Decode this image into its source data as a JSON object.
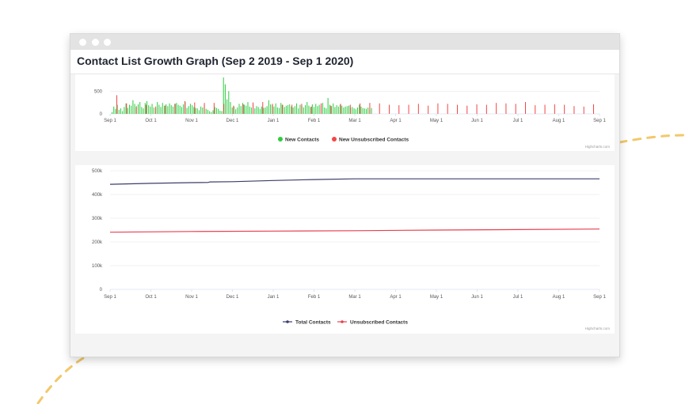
{
  "window": {
    "title": "Contact List Growth Graph (Sep 2 2019 - Sep 1 2020)"
  },
  "colors": {
    "new_contacts": "#2ecc40",
    "new_unsubscribed": "#f44646",
    "total_contacts": "#3b3d6b",
    "unsubscribed_contacts": "#e8404f",
    "accent_dashes": "#f2c86a"
  },
  "chart_data": [
    {
      "type": "bar",
      "x_tick_labels": [
        "Sep 1",
        "Oct 1",
        "Nov 1",
        "Dec 1",
        "Jan 1",
        "Feb 1",
        "Mar 1",
        "Apr 1",
        "May 1",
        "Jun 1",
        "Jul 1",
        "Aug 1",
        "Sep 1"
      ],
      "y_tick_labels": [
        "0",
        "500"
      ],
      "ylim": [
        0,
        800
      ],
      "series": [
        {
          "name": "New Contacts",
          "color": "#2ecc40",
          "values": [
            40,
            160,
            110,
            200,
            90,
            120,
            60,
            150,
            230,
            130,
            200,
            180,
            300,
            220,
            170,
            210,
            260,
            150,
            120,
            240,
            280,
            190,
            160,
            220,
            140,
            120,
            260,
            200,
            150,
            240,
            180,
            210,
            170,
            230,
            190,
            160,
            220,
            240,
            200,
            180,
            150,
            210,
            260,
            130,
            170,
            220,
            190,
            150,
            130,
            120,
            80,
            160,
            140,
            200,
            110,
            90,
            60,
            40,
            80,
            150,
            130,
            110,
            70,
            60,
            800,
            650,
            320,
            500,
            260,
            140,
            160,
            100,
            140,
            220,
            170,
            240,
            200,
            180,
            260,
            160,
            140,
            200,
            120,
            170,
            150,
            110,
            160,
            130,
            140,
            170,
            300,
            210,
            190,
            160,
            230,
            140,
            130,
            240,
            200,
            150,
            180,
            190,
            210,
            160,
            140,
            170,
            230,
            120,
            200,
            170,
            140,
            190,
            260,
            180,
            150,
            210,
            150,
            220,
            170,
            200,
            180,
            240,
            140,
            120,
            350,
            200,
            170,
            230,
            150,
            190,
            160,
            200,
            180,
            140,
            160,
            170,
            180,
            140,
            150,
            120,
            100,
            140,
            200,
            160,
            130,
            120,
            110,
            140,
            90,
            130
          ]
        },
        {
          "name": "New Unsubscribed Contacts",
          "color": "#f44646",
          "values": [
            410,
            230,
            150,
            200,
            160,
            180,
            220,
            280,
            250,
            240,
            240,
            220,
            180,
            210,
            250,
            260,
            220,
            200,
            200,
            220,
            160,
            230,
            180,
            220,
            200,
            230,
            240,
            230,
            200,
            190,
            200,
            220,
            180,
            230,
            220,
            200,
            180,
            210,
            200,
            240,
            230,
            220,
            260,
            190,
            200,
            210,
            200,
            170,
            160,
            210
          ]
        }
      ]
    },
    {
      "type": "line",
      "x_tick_labels": [
        "Sep 1",
        "Oct 1",
        "Nov 1",
        "Dec 1",
        "Jan 1",
        "Feb 1",
        "Mar 1",
        "Apr 1",
        "May 1",
        "Jun 1",
        "Jul 1",
        "Aug 1",
        "Sep 1"
      ],
      "y_tick_labels": [
        "0",
        "100k",
        "200k",
        "300k",
        "400k",
        "500k"
      ],
      "ylim": [
        0,
        500000
      ],
      "series": [
        {
          "name": "Total Contacts",
          "color": "#3b3d6b",
          "points": [
            [
              0,
              443000
            ],
            [
              1,
              447000
            ],
            [
              2,
              450000
            ],
            [
              2.4,
              450500
            ],
            [
              2.45,
              453000
            ],
            [
              3,
              454000
            ],
            [
              4,
              459000
            ],
            [
              5,
              463000
            ],
            [
              6,
              466000
            ],
            [
              7,
              466000
            ],
            [
              8,
              466000
            ],
            [
              9,
              466000
            ],
            [
              10,
              466000
            ],
            [
              11,
              466000
            ],
            [
              12,
              466000
            ]
          ]
        },
        {
          "name": "Unsubscribed Contacts",
          "color": "#e8404f",
          "points": [
            [
              0,
              241000
            ],
            [
              2,
              244000
            ],
            [
              4,
              245500
            ],
            [
              6,
              247500
            ],
            [
              8,
              250000
            ],
            [
              10,
              252000
            ],
            [
              12,
              254500
            ]
          ]
        }
      ]
    }
  ],
  "credits": [
    "Highcharts.com",
    "Highcharts.com"
  ]
}
